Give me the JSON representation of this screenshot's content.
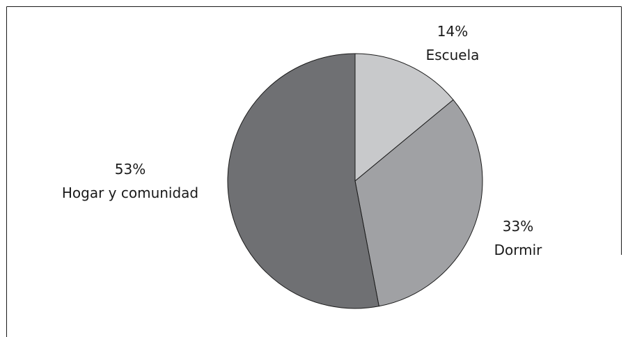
{
  "chart_data": {
    "type": "pie",
    "slices": [
      {
        "category": "Escuela",
        "value": 14,
        "percent_label": "14%",
        "color": "#c8c9cb"
      },
      {
        "category": "Dormir",
        "value": 33,
        "percent_label": "33%",
        "color": "#a0a1a4"
      },
      {
        "category": "Hogar y comunidad",
        "value": 53,
        "percent_label": "53%",
        "color": "#6f7073"
      }
    ],
    "start": "12 o'clock",
    "direction": "clockwise",
    "border_color": "#1a1a1a",
    "frame_color": "#1a1a1a"
  }
}
